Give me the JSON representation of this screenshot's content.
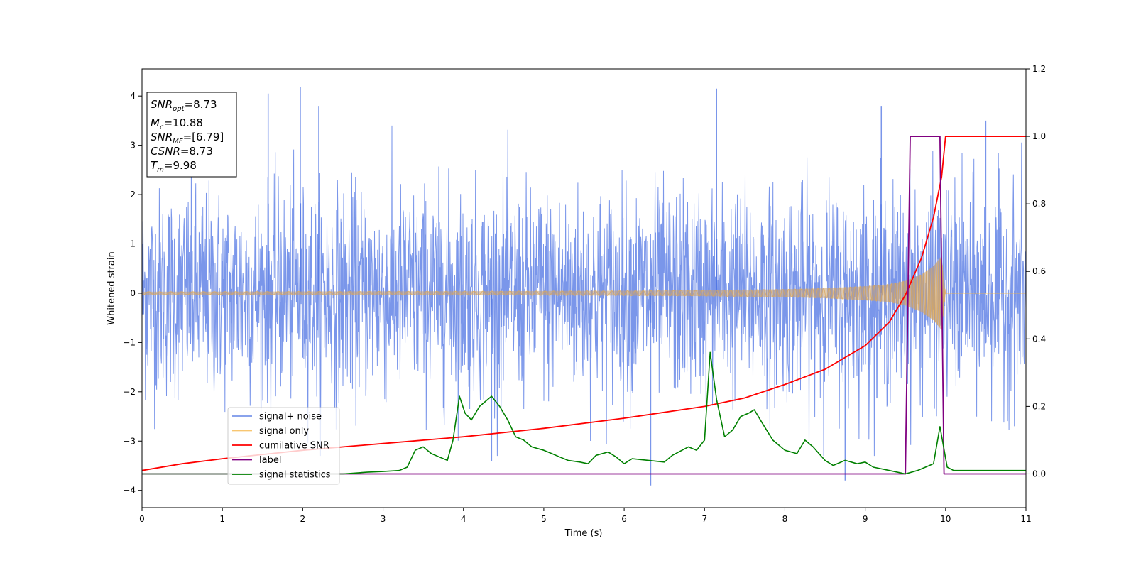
{
  "chart_data": {
    "type": "line",
    "xlabel": "Time (s)",
    "ylabel": "Whitened strain",
    "xlim": [
      0,
      11
    ],
    "ylim": [
      -4.35,
      4.55
    ],
    "y2lim": [
      -0.1,
      1.2
    ],
    "x_ticks": [
      "0",
      "1",
      "2",
      "3",
      "4",
      "5",
      "6",
      "7",
      "8",
      "9",
      "10",
      "11"
    ],
    "y_ticks": [
      "−4",
      "−3",
      "−2",
      "−1",
      "0",
      "1",
      "2",
      "3",
      "4"
    ],
    "y2_ticks": [
      "0.0",
      "0.2",
      "0.4",
      "0.6",
      "0.8",
      "1.0",
      "1.2"
    ],
    "grid": false,
    "legend_position": "lower-left",
    "colors": {
      "signal_noise": "#4169e1",
      "signal_only": "#f5b342",
      "cumulative_snr": "#ff0000",
      "label": "#800080",
      "signal_statistics": "#008000"
    },
    "annotation": {
      "snr_opt": {
        "base": "SNR",
        "sub": "opt",
        "value": "=8.73"
      },
      "mc": {
        "base": "M",
        "sub": "c",
        "value": "=10.88"
      },
      "snr_mf": {
        "base": "SNR",
        "sub": "MF",
        "value": "=[6.79]"
      },
      "csnr": {
        "base": "CSNR",
        "sub": "",
        "value": "=8.73"
      },
      "tm": {
        "base": "T",
        "sub": "m",
        "value": "=9.98"
      }
    },
    "series": [
      {
        "name": "signal+ noise",
        "axis": "left",
        "description": "whitened noise, roughly gaussian with std ~1 and peaks up to ~4.2",
        "x_range": [
          0,
          11
        ],
        "peaks": [
          [
            1.57,
            4.05
          ],
          [
            1.97,
            4.18
          ],
          [
            2.2,
            3.8
          ],
          [
            7.15,
            4.15
          ],
          [
            9.2,
            3.8
          ],
          [
            10.5,
            3.5
          ],
          [
            6.33,
            -3.9
          ],
          [
            8.75,
            -3.8
          ],
          [
            4.35,
            -3.4
          ]
        ]
      },
      {
        "name": "signal only",
        "axis": "left",
        "description": "chirp with growing amplitude ending at merger",
        "envelope": {
          "x": [
            0,
            2,
            4,
            6,
            7,
            8,
            8.5,
            9,
            9.3,
            9.5,
            9.7,
            9.85,
            9.95,
            10.0
          ],
          "y": [
            0.03,
            0.035,
            0.04,
            0.05,
            0.06,
            0.08,
            0.1,
            0.14,
            0.18,
            0.25,
            0.38,
            0.55,
            0.75,
            0.0
          ]
        }
      },
      {
        "name": "cumilative SNR",
        "axis": "right",
        "x": [
          0,
          0.5,
          1,
          2,
          3,
          4,
          5,
          6,
          7,
          7.5,
          8,
          8.5,
          9,
          9.3,
          9.5,
          9.7,
          9.85,
          9.95,
          10.0,
          11
        ],
        "y": [
          0.01,
          0.03,
          0.045,
          0.07,
          0.09,
          0.11,
          0.135,
          0.165,
          0.2,
          0.225,
          0.265,
          0.31,
          0.38,
          0.45,
          0.53,
          0.64,
          0.76,
          0.88,
          1.0,
          1.0
        ]
      },
      {
        "name": "label",
        "axis": "right",
        "x": [
          0,
          9.5,
          9.56,
          9.93,
          9.98,
          11
        ],
        "y": [
          0,
          0,
          1,
          1,
          0,
          0
        ]
      },
      {
        "name": "signal statistics",
        "axis": "right",
        "x": [
          0,
          1,
          2,
          2.5,
          2.8,
          3.0,
          3.2,
          3.3,
          3.4,
          3.5,
          3.6,
          3.7,
          3.8,
          3.87,
          3.95,
          4.02,
          4.1,
          4.2,
          4.25,
          4.35,
          4.45,
          4.55,
          4.65,
          4.75,
          4.85,
          5.0,
          5.1,
          5.2,
          5.3,
          5.45,
          5.55,
          5.65,
          5.8,
          5.9,
          6.0,
          6.1,
          6.3,
          6.5,
          6.6,
          6.8,
          6.9,
          7.0,
          7.07,
          7.15,
          7.25,
          7.35,
          7.45,
          7.55,
          7.62,
          7.72,
          7.85,
          8.0,
          8.15,
          8.25,
          8.35,
          8.5,
          8.6,
          8.75,
          8.9,
          9.0,
          9.1,
          9.3,
          9.5,
          9.65,
          9.75,
          9.85,
          9.93,
          10.02,
          10.1,
          10.3,
          10.6,
          11
        ],
        "y": [
          0.0,
          0.0,
          0.0,
          0.0,
          0.005,
          0.007,
          0.01,
          0.02,
          0.07,
          0.08,
          0.06,
          0.05,
          0.04,
          0.1,
          0.23,
          0.18,
          0.16,
          0.2,
          0.21,
          0.23,
          0.2,
          0.16,
          0.11,
          0.1,
          0.08,
          0.07,
          0.06,
          0.05,
          0.04,
          0.035,
          0.03,
          0.055,
          0.065,
          0.05,
          0.03,
          0.045,
          0.04,
          0.035,
          0.055,
          0.08,
          0.07,
          0.1,
          0.36,
          0.22,
          0.11,
          0.13,
          0.17,
          0.18,
          0.19,
          0.15,
          0.1,
          0.07,
          0.06,
          0.1,
          0.08,
          0.04,
          0.025,
          0.04,
          0.03,
          0.035,
          0.02,
          0.01,
          0.0,
          0.01,
          0.02,
          0.03,
          0.14,
          0.02,
          0.01,
          0.01,
          0.01,
          0.01
        ]
      }
    ]
  }
}
